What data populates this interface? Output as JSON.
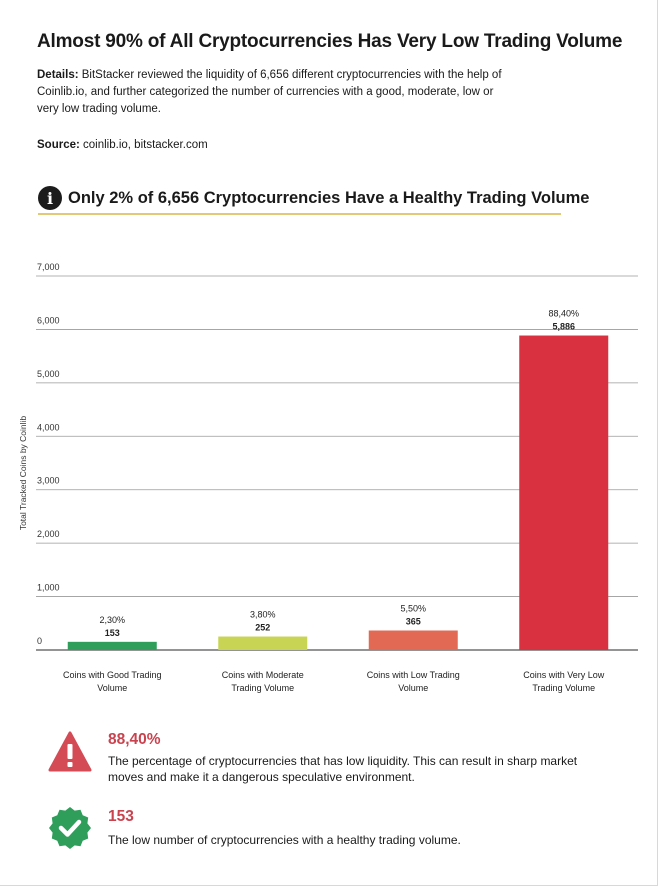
{
  "header": {
    "title": "Almost 90% of All Cryptocurrencies Has Very Low Trading Volume",
    "details_label": "Details:",
    "details_text": "BitStacker reviewed the liquidity of 6,656 different cryptocurrencies with the help of Coinlib.io, and further categorized the number of currencies with a good, moderate, low or very low trading volume.",
    "source_label": "Source:",
    "source_text": "coinlib.io, bitstacker.com"
  },
  "subheading": {
    "icon": "info-icon",
    "icon_glyph": "i",
    "text": "Only 2% of 6,656 Cryptocurrencies Have a Healthy Trading Volume"
  },
  "chart_data": {
    "type": "bar",
    "title": "Only 2% of 6,656 Cryptocurrencies Have a Healthy Trading Volume",
    "xlabel": "",
    "ylabel": "Total Tracked Coins by Coinlib",
    "ylim": [
      0,
      7000
    ],
    "yticks": [
      0,
      1000,
      2000,
      3000,
      4000,
      5000,
      6000,
      7000
    ],
    "ytick_labels": [
      "0",
      "1,000",
      "2,000",
      "3,000",
      "4,000",
      "5,000",
      "6,000",
      "7,000"
    ],
    "grid": true,
    "categories": [
      [
        "Coins with Good Trading",
        "Volume"
      ],
      [
        "Coins with Moderate",
        "Trading Volume"
      ],
      [
        "Coins with Low Trading",
        "Volume"
      ],
      [
        "Coins with Very Low",
        "Trading Volume"
      ]
    ],
    "values": [
      153,
      252,
      365,
      5886
    ],
    "value_labels": [
      "153",
      "252",
      "365",
      "5,886"
    ],
    "percent_labels": [
      "2,30%",
      "3,80%",
      "5,50%",
      "88,40%"
    ],
    "colors": [
      "#2f9e5b",
      "#c8d554",
      "#e26a55",
      "#d9313f"
    ]
  },
  "callouts": [
    {
      "icon": "warning-icon",
      "value": "88,40%",
      "text": "The percentage of cryptocurrencies that has low liquidity. This can result in sharp market moves and make it a dangerous speculative environment.",
      "color": "#d44b55"
    },
    {
      "icon": "check-badge-icon",
      "value": "153",
      "text": "The low number of cryptocurrencies with a healthy trading volume.",
      "color": "#2f9e5b"
    }
  ]
}
